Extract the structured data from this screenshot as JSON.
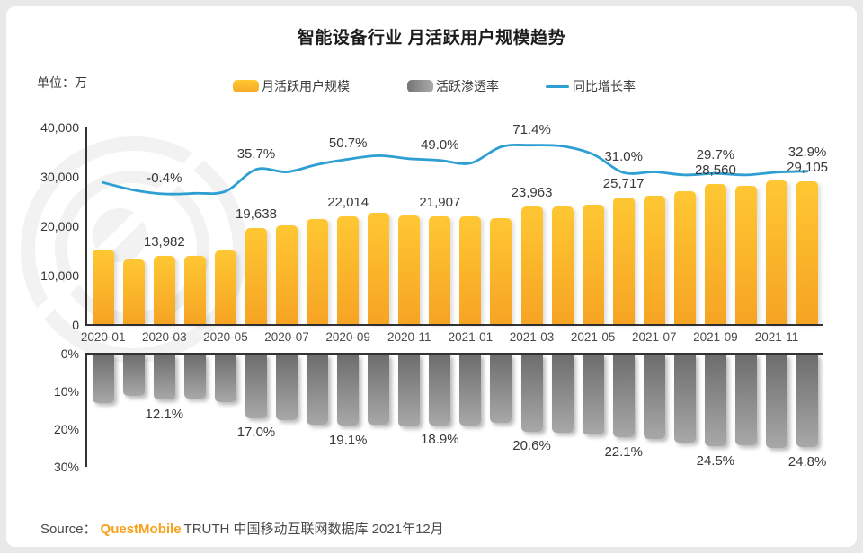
{
  "page": {
    "title": "智能设备行业 月活跃用户规模趋势",
    "unit_label": "单位：万"
  },
  "legend": {
    "mau": {
      "label": "月活跃用户规模",
      "color": "#FFB526"
    },
    "penetration": {
      "label": "活跃渗透率",
      "color": "#8C8C8C"
    },
    "yoy": {
      "label": "同比增长率",
      "color": "#2E9FD3"
    }
  },
  "source": {
    "prefix": "Source：",
    "brand": "QuestMobile",
    "suffix": "TRUTH 中国移动互联网数据库 2021年12月"
  },
  "chart_data": {
    "type": "combo",
    "categories": [
      "2020-01",
      "2020-02",
      "2020-03",
      "2020-04",
      "2020-05",
      "2020-06",
      "2020-07",
      "2020-08",
      "2020-09",
      "2020-10",
      "2020-11",
      "2020-12",
      "2021-01",
      "2021-02",
      "2021-03",
      "2021-04",
      "2021-05",
      "2021-06",
      "2021-07",
      "2021-08",
      "2021-09",
      "2021-10",
      "2021-11",
      "2021-12"
    ],
    "x_tick_indices": [
      0,
      2,
      4,
      6,
      8,
      10,
      12,
      14,
      16,
      18,
      20,
      22
    ],
    "label_indices": [
      2,
      5,
      8,
      11,
      14,
      17,
      20,
      23
    ],
    "series": [
      {
        "name": "月活跃用户规模",
        "type": "bar",
        "unit": "万",
        "values": [
          15200,
          13300,
          13982,
          13900,
          14950,
          19638,
          20100,
          21350,
          22014,
          22700,
          22100,
          21907,
          22000,
          21650,
          23963,
          23900,
          24400,
          25717,
          26200,
          27100,
          28560,
          28200,
          29300,
          29105
        ],
        "labeled_values": {
          "2020-03": "13,982",
          "2020-06": "19,638",
          "2020-09": "22,014",
          "2020-12": "21,907",
          "2021-03": "23,963",
          "2021-06": "25,717",
          "2021-09": "28,560",
          "2021-12": "29,105"
        }
      },
      {
        "name": "同比增长率",
        "type": "line",
        "unit": "%",
        "values": [
          16.4,
          5.3,
          -0.4,
          0.5,
          3.5,
          35.7,
          32.0,
          43.0,
          50.7,
          56.0,
          51.5,
          49.0,
          45.0,
          69.0,
          71.4,
          70.0,
          58.0,
          31.0,
          32.0,
          27.5,
          29.7,
          27.5,
          31.5,
          32.9
        ],
        "labeled_values": {
          "2020-03": "-0.4%",
          "2020-06": "35.7%",
          "2020-09": "50.7%",
          "2020-12": "49.0%",
          "2021-03": "71.4%",
          "2021-06": "31.0%",
          "2021-09": "29.7%",
          "2021-12": "32.9%"
        }
      },
      {
        "name": "活跃渗透率",
        "type": "bar_inverted",
        "unit": "%",
        "values": [
          13.1,
          11.2,
          12.1,
          11.9,
          12.8,
          17.0,
          17.6,
          18.7,
          19.1,
          18.8,
          19.2,
          18.9,
          18.9,
          18.2,
          20.6,
          21.0,
          21.4,
          22.1,
          22.6,
          23.5,
          24.5,
          24.3,
          24.9,
          24.8
        ],
        "labeled_values": {
          "2020-03": "12.1%",
          "2020-06": "17.0%",
          "2020-09": "19.1%",
          "2020-12": "18.9%",
          "2021-03": "20.6%",
          "2021-06": "22.1%",
          "2021-09": "24.5%",
          "2021-12": "24.8%"
        }
      }
    ],
    "left_axis": {
      "title": "单位：万",
      "min": 0,
      "max": 40000,
      "ticks": [
        "40,000",
        "30,000",
        "20,000",
        "10,000",
        "0"
      ]
    },
    "penetration_axis": {
      "min": 0,
      "max": 30,
      "ticks": [
        "0%",
        "10%",
        "20%",
        "30%"
      ],
      "inverted": true
    },
    "grid": false,
    "legend_position": "top-center",
    "colors": {
      "bar": "#FFB526",
      "bar_inverted": "#8C8C8C",
      "line": "#2E9FD3"
    }
  }
}
